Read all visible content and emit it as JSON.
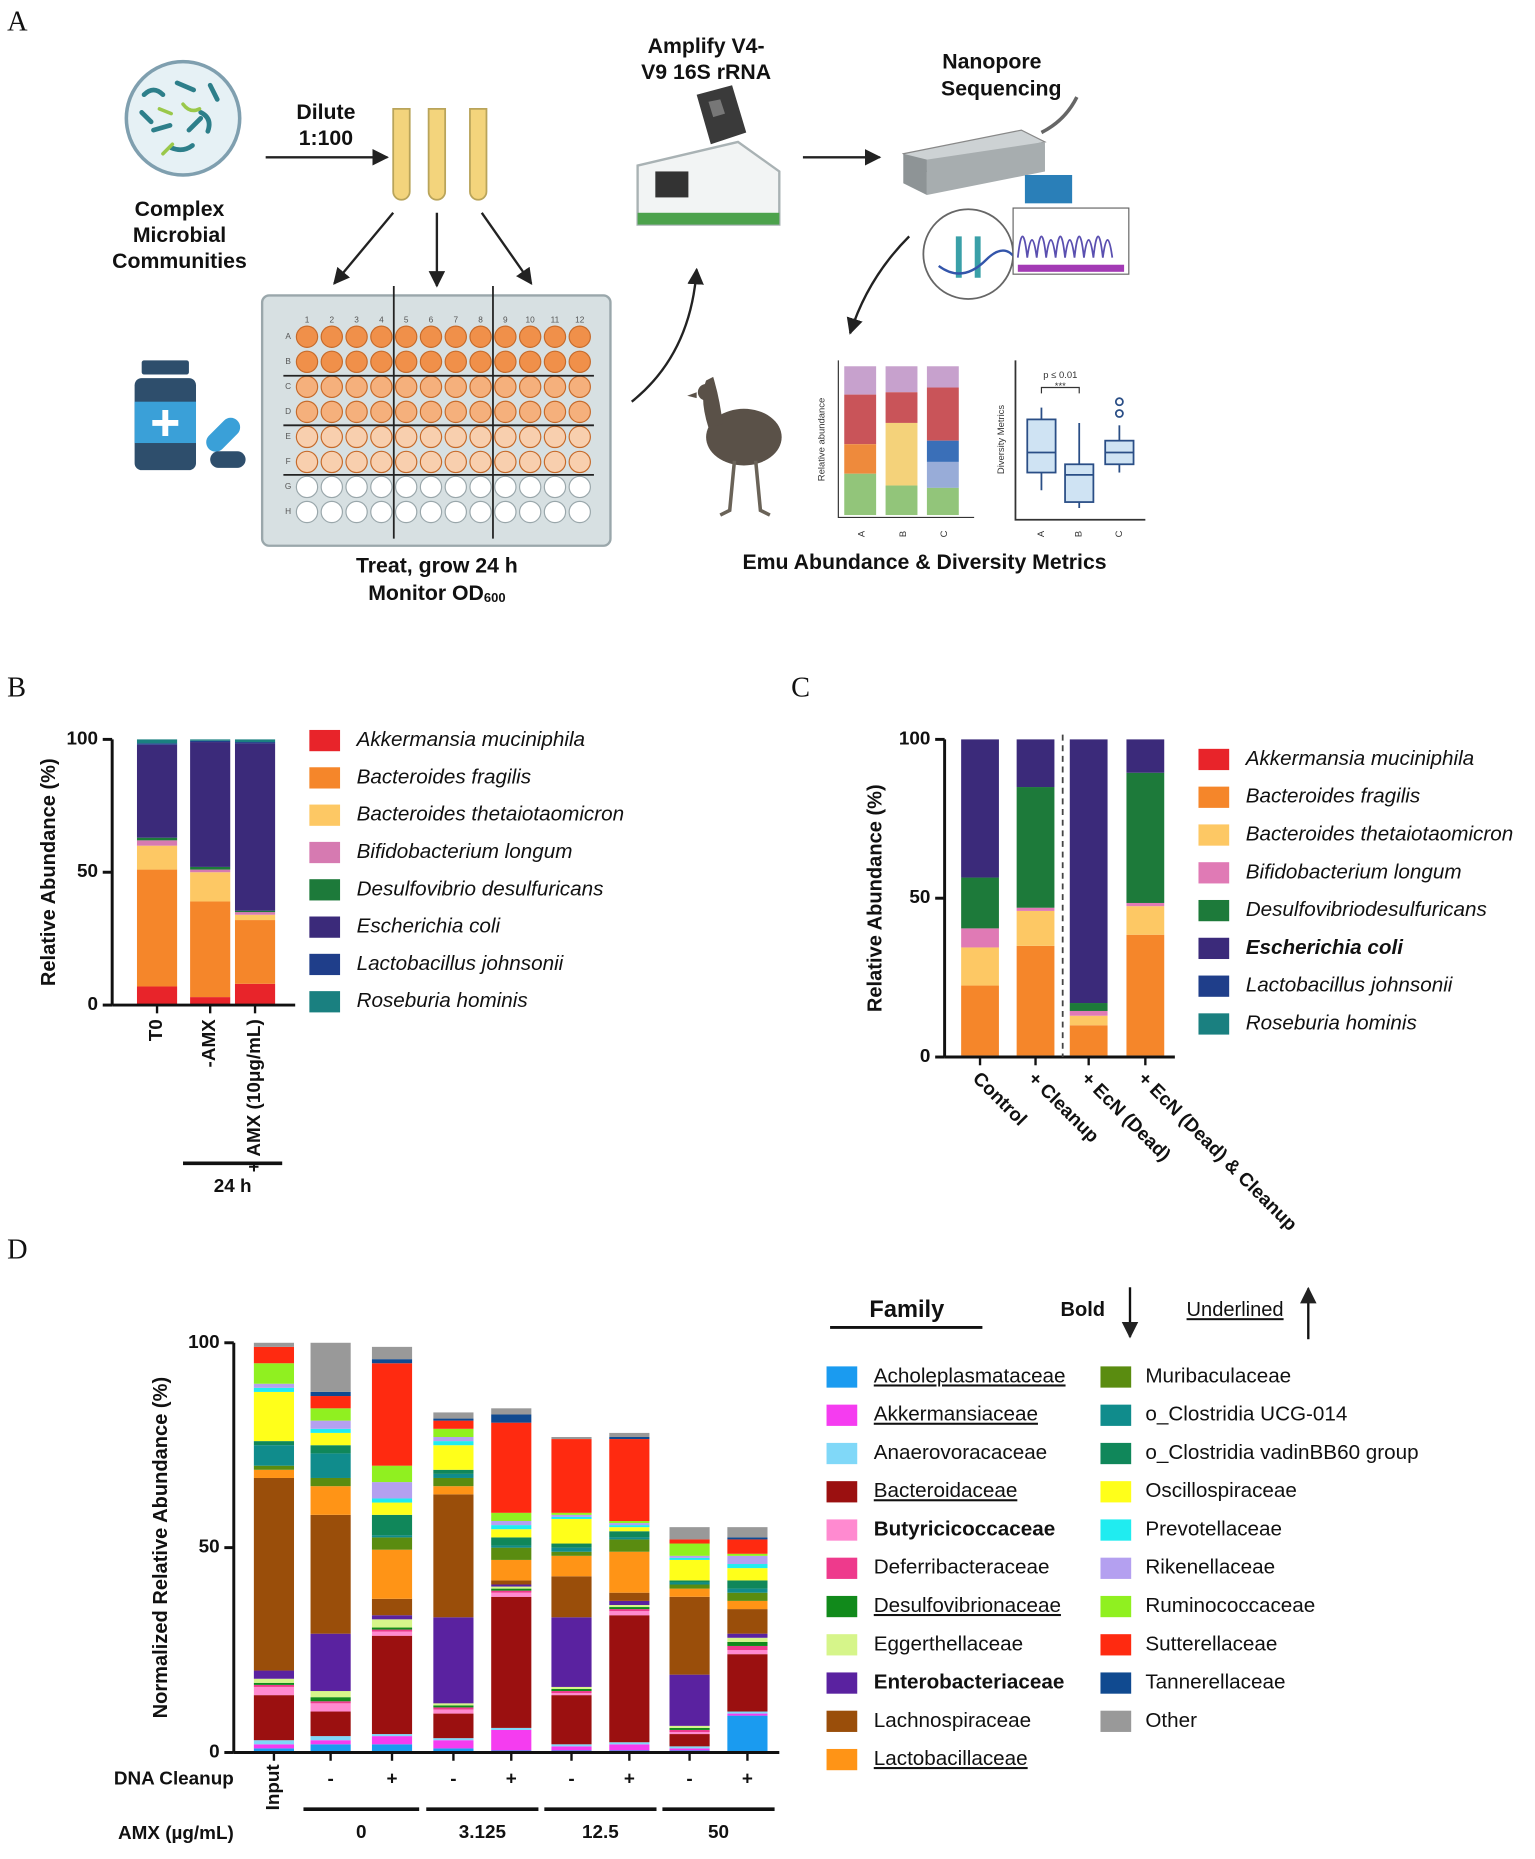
{
  "panel_labels": [
    "A",
    "B",
    "C",
    "D"
  ],
  "diagram": {
    "source": [
      "Complex",
      "Microbial",
      "Communities"
    ],
    "dilute": [
      "Dilute",
      "1:100"
    ],
    "plate_columns": [
      "1",
      "2",
      "3",
      "4",
      "5",
      "6",
      "7",
      "8",
      "9",
      "10",
      "11",
      "12"
    ],
    "plate_rows": [
      "A",
      "B",
      "C",
      "D",
      "E",
      "F",
      "G",
      "H"
    ],
    "treat": "Treat, grow 24 h",
    "monitor": "Monitor OD",
    "monitor_sub": "600",
    "amplify": [
      "Amplify V4-",
      "V9 16S rRNA"
    ],
    "sequencing": [
      "Nanopore",
      "Sequencing"
    ],
    "mini_bar": {
      "ylabel": "Relative abundance",
      "categories": [
        "A",
        "B",
        "C"
      ]
    },
    "mini_box": {
      "ylabel": "Diversity Metrics",
      "categories": [
        "A",
        "B",
        "C"
      ],
      "pvalue": "p ≤ 0.01",
      "stars": "***"
    },
    "caption": "Emu Abundance & Diversity Metrics"
  },
  "chart_data": [
    {
      "type": "bar",
      "stacked": true,
      "ylabel": "Relative Abundance (%)",
      "categories": [
        "T0",
        "-AMX",
        "+ AMX (10μg/mL)"
      ],
      "group_labels": [
        "24 h"
      ],
      "ylim": [
        0,
        100
      ],
      "yticks": [
        0,
        50,
        100
      ],
      "legend_italic": true,
      "series": [
        {
          "name": "Akkermansia muciniphila",
          "color": "#e8242a",
          "values": [
            7,
            3,
            8
          ]
        },
        {
          "name": "Bacteroides fragilis",
          "color": "#f5862a",
          "values": [
            44,
            36,
            24
          ]
        },
        {
          "name": "Bacteroides thetaiotaomicron",
          "color": "#fdc864",
          "values": [
            9,
            11,
            2
          ]
        },
        {
          "name": "Bifidobacterium longum",
          "color": "#d67ab1",
          "values": [
            2,
            1,
            1
          ]
        },
        {
          "name": "Desulfovibrio desulfuricans",
          "color": "#1d7a3a",
          "values": [
            1,
            1,
            0.5
          ]
        },
        {
          "name": "Escherichia coli",
          "color": "#3b2a7a",
          "values": [
            35,
            47,
            63
          ]
        },
        {
          "name": "Lactobacillus johnsonii",
          "color": "#1f3e8a",
          "values": [
            0.5,
            0.5,
            0.5
          ]
        },
        {
          "name": "Roseburia hominis",
          "color": "#1a8080",
          "values": [
            1.5,
            0.5,
            1
          ]
        }
      ]
    },
    {
      "type": "bar",
      "stacked": true,
      "ylabel": "Relative Abundance (%)",
      "categories": [
        "Control",
        "+ Cleanup",
        "+ EcN (Dead)",
        "+ EcN (Dead) & Cleanup"
      ],
      "ylim": [
        0,
        100
      ],
      "yticks": [
        0,
        50,
        100
      ],
      "legend_italic": true,
      "series": [
        {
          "name": "Akkermansia muciniphila",
          "color": "#e8242a",
          "values": [
            0.5,
            0.5,
            0.5,
            0.5
          ]
        },
        {
          "name": "Bacteroides fragilis",
          "color": "#f5862a",
          "values": [
            22,
            34.5,
            9.5,
            38
          ]
        },
        {
          "name": "Bacteroides thetaiotaomicron",
          "color": "#fdc864",
          "values": [
            12,
            11,
            3,
            9
          ]
        },
        {
          "name": "Bifidobacterium longum",
          "color": "#e07ab5",
          "values": [
            6,
            1,
            1.5,
            1
          ]
        },
        {
          "name": "Desulfovibriodesulfuricans",
          "color": "#1d7a3a",
          "values": [
            16,
            38,
            2.5,
            41
          ]
        },
        {
          "name": "Escherichia coli",
          "color": "#3b2a7a",
          "values": [
            43.5,
            15,
            83,
            10.5
          ],
          "style": "bold"
        },
        {
          "name": "Lactobacillus johnsonii",
          "color": "#1f3e8a",
          "values": [
            0,
            0,
            0,
            0
          ]
        },
        {
          "name": "Roseburia hominis",
          "color": "#1a8080",
          "values": [
            0,
            0,
            0,
            0
          ]
        }
      ]
    },
    {
      "type": "bar",
      "stacked": true,
      "ylabel": "Normalized Relative Abundance (%)",
      "categories": [
        "Input",
        "-",
        "+",
        "-",
        "+",
        "-",
        "+",
        "-",
        "+"
      ],
      "x_rows": [
        "DNA Cleanup",
        "AMX (µg/mL)"
      ],
      "group_labels": [
        "0",
        "3.125",
        "12.5",
        "50"
      ],
      "ylim": [
        0,
        100
      ],
      "yticks": [
        0,
        50,
        100
      ],
      "legend_title": "Family",
      "legend_key": {
        "bold": "Bold",
        "underline": "Underlined"
      },
      "series": [
        {
          "name": "Acholeplasmataceae",
          "color": "#1a9bf0",
          "style": "underline",
          "values": [
            1,
            2,
            2,
            1,
            0.5,
            0.5,
            0.5,
            0.5,
            9
          ]
        },
        {
          "name": "Akkermansiaceae",
          "color": "#f53cf0",
          "style": "underline",
          "values": [
            1,
            1,
            2,
            2,
            5,
            1,
            1.5,
            0.5,
            0.5
          ]
        },
        {
          "name": "Anaerovoracaceae",
          "color": "#80d8f8",
          "values": [
            1,
            1,
            0.5,
            0.5,
            0.5,
            0.5,
            0.5,
            0.5,
            0.5
          ]
        },
        {
          "name": "Bacteroidaceae",
          "color": "#9b1010",
          "style": "underline",
          "values": [
            11,
            6,
            24,
            6,
            32,
            12,
            31,
            3,
            14
          ]
        },
        {
          "name": "Butyricicoccaceae",
          "color": "#ff8ad0",
          "style": "bold",
          "values": [
            2,
            2,
            1,
            1,
            1,
            0.5,
            1,
            0.5,
            1
          ]
        },
        {
          "name": "Deferribacteraceae",
          "color": "#ee3a8c",
          "values": [
            0.5,
            0.5,
            0.5,
            0.5,
            0.5,
            0.5,
            0.5,
            0.5,
            1
          ]
        },
        {
          "name": "Desulfovibrionaceae",
          "color": "#118a1b",
          "style": "underline",
          "values": [
            0.5,
            1,
            0.5,
            0.5,
            0.5,
            0.5,
            0.5,
            0.5,
            1
          ]
        },
        {
          "name": "Eggerthellaceae",
          "color": "#d6f58a",
          "values": [
            1,
            1.5,
            2,
            0.5,
            0.5,
            0.5,
            0.5,
            0.5,
            1
          ]
        },
        {
          "name": "Enterobacteriaceae",
          "color": "#5a22a0",
          "style": "bold",
          "values": [
            2,
            14,
            1,
            21,
            0.5,
            17,
            1,
            12.5,
            1
          ]
        },
        {
          "name": "Lachnospiraceae",
          "color": "#9a4e0a",
          "values": [
            47,
            29,
            4,
            30,
            1,
            10,
            2,
            19,
            6
          ]
        },
        {
          "name": "Lactobacillaceae",
          "color": "#ff9416",
          "style": "underline",
          "values": [
            2,
            7,
            12,
            2,
            5,
            5,
            10,
            2,
            2
          ]
        },
        {
          "name": "Muribaculaceae",
          "color": "#5a8c10",
          "values": [
            1,
            2,
            3,
            2,
            3,
            1,
            3,
            1,
            2
          ]
        },
        {
          "name": "o_Clostridia UCG-014",
          "color": "#108c8c",
          "values": [
            5,
            6,
            0.5,
            1,
            0.5,
            1,
            0.5,
            0.5,
            1
          ]
        },
        {
          "name": "o_Clostridia vadinBB60 group",
          "color": "#10875a",
          "values": [
            1,
            2,
            5,
            1,
            2,
            1,
            1.5,
            0.5,
            2
          ]
        },
        {
          "name": "Oscillospiraceae",
          "color": "#ffff1a",
          "values": [
            12,
            3,
            3,
            6,
            2,
            6,
            1,
            5,
            3
          ]
        },
        {
          "name": "Prevotellaceae",
          "color": "#20ecf0",
          "values": [
            1,
            1,
            1,
            1,
            1,
            0.5,
            0.5,
            0.5,
            1
          ]
        },
        {
          "name": "Rikenellaceae",
          "color": "#b4a0f0",
          "values": [
            1,
            2,
            4,
            1,
            1,
            0.5,
            0.5,
            0.5,
            2
          ]
        },
        {
          "name": "Ruminococcaceae",
          "color": "#90f020",
          "values": [
            5,
            3,
            4,
            2,
            2,
            0.5,
            0.5,
            3,
            0.5
          ]
        },
        {
          "name": "Sutterellaceae",
          "color": "#ff2a10",
          "values": [
            4,
            3,
            25,
            2,
            22,
            18,
            20,
            1,
            3.5
          ]
        },
        {
          "name": "Tannerellaceae",
          "color": "#104a90",
          "values": [
            0,
            1,
            1,
            0.5,
            2,
            0,
            0.5,
            0,
            0.5
          ]
        },
        {
          "name": "Other",
          "color": "#999999",
          "values": [
            1,
            12,
            3,
            1.5,
            1.5,
            0.5,
            1,
            3,
            2.5
          ]
        }
      ]
    }
  ]
}
